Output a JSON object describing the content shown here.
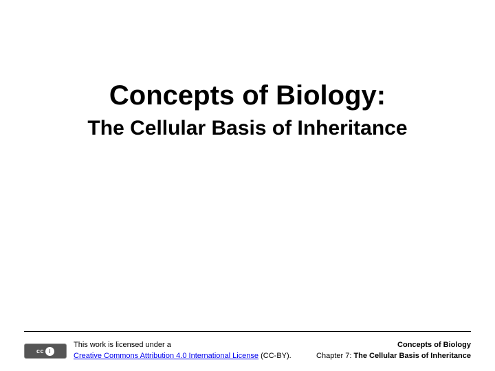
{
  "title": {
    "main": "Concepts of Biology:",
    "sub": "The Cellular Basis of Inheritance"
  },
  "footer": {
    "license": {
      "intro": "This work is licensed under a",
      "link_text": "Creative Commons Attribution 4.0 International License",
      "suffix": " (CC-BY).",
      "badge_cc": "cc",
      "badge_by": "i"
    },
    "right": {
      "book": "Concepts of Biology",
      "chapter_prefix": "Chapter 7: ",
      "chapter_name": "The Cellular Basis of Inheritance"
    }
  },
  "colors": {
    "background": "#ffffff",
    "text": "#000000",
    "link": "#0000ee",
    "badge_bg": "#555555"
  }
}
